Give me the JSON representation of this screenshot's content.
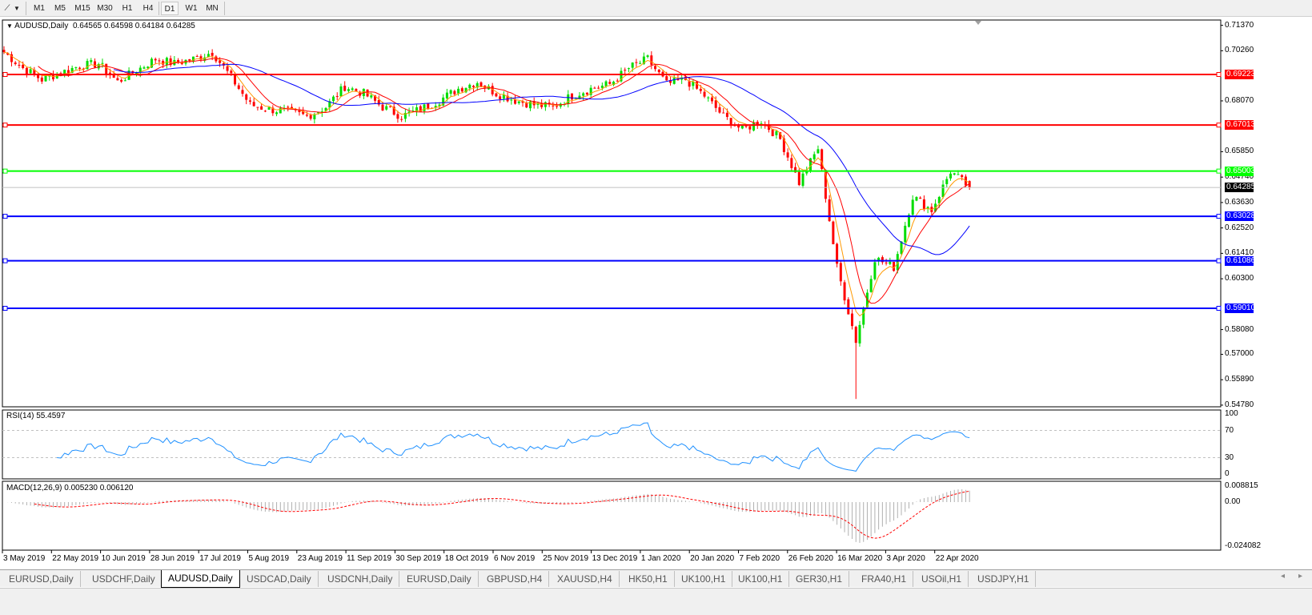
{
  "toolbar": {
    "tool_icon": "line-tool-icon",
    "timeframes": [
      "M1",
      "M5",
      "M15",
      "M30",
      "H1",
      "H4",
      "D1",
      "W1",
      "MN"
    ],
    "active_timeframe": "D1"
  },
  "chart": {
    "header": "AUDUSD,Daily",
    "ohlc": "0.64565 0.64598 0.64184 0.64285",
    "last_bar": {
      "open": 0.64565,
      "high": 0.64598,
      "low": 0.64184,
      "close": 0.64285
    },
    "current_price": "0.64285",
    "price_ticks": [
      "0.71370",
      "0.70260",
      "0.68070",
      "0.65850",
      "0.64740",
      "0.63630",
      "0.62520",
      "0.61410",
      "0.60300",
      "0.58080",
      "0.57000",
      "0.55890",
      "0.54780"
    ],
    "horizontal_lines": [
      {
        "price": "0.69223",
        "color": "#ff0000"
      },
      {
        "price": "0.67013",
        "color": "#ff0000"
      },
      {
        "price": "0.65003",
        "color": "#00ff00"
      },
      {
        "price": "0.63028",
        "color": "#0000ff"
      },
      {
        "price": "0.61086",
        "color": "#0000ff"
      },
      {
        "price": "0.59010",
        "color": "#0000ff"
      }
    ],
    "colors": {
      "bull": "#00dd00",
      "bear": "#ff0000",
      "ma_fast": "#ff9900",
      "ma_mid": "#ff0000",
      "ma_slow": "#0000ff",
      "rsi": "#1e90ff",
      "macd_hist": "#b0b0b0",
      "macd_signal": "#ff0000"
    },
    "weekly_closes": [
      0.702,
      0.695,
      0.69,
      0.693,
      0.696,
      0.697,
      0.689,
      0.694,
      0.699,
      0.697,
      0.699,
      0.702,
      0.691,
      0.679,
      0.677,
      0.676,
      0.674,
      0.678,
      0.687,
      0.684,
      0.678,
      0.674,
      0.677,
      0.681,
      0.686,
      0.689,
      0.684,
      0.681,
      0.679,
      0.678,
      0.683,
      0.686,
      0.688,
      0.695,
      0.699,
      0.688,
      0.69,
      0.683,
      0.674,
      0.668,
      0.672,
      0.664,
      0.645,
      0.66,
      0.608,
      0.576,
      0.612,
      0.608,
      0.639,
      0.633,
      0.65,
      0.6428
    ]
  },
  "rsi": {
    "label": "RSI(14) 55.4597",
    "levels": [
      "100",
      "70",
      "30",
      "0"
    ]
  },
  "macd": {
    "label": "MACD(12,26,9) 0.005230 0.006120",
    "ticks": [
      "0.008815",
      "0.00",
      "-0.024082"
    ]
  },
  "dates": [
    "3 May 2019",
    "22 May 2019",
    "10 Jun 2019",
    "28 Jun 2019",
    "17 Jul 2019",
    "5 Aug 2019",
    "23 Aug 2019",
    "11 Sep 2019",
    "30 Sep 2019",
    "18 Oct 2019",
    "6 Nov 2019",
    "25 Nov 2019",
    "13 Dec 2019",
    "1 Jan 2020",
    "20 Jan 2020",
    "7 Feb 2020",
    "26 Feb 2020",
    "16 Mar 2020",
    "3 Apr 2020",
    "22 Apr 2020"
  ],
  "tabs": [
    "EURUSD,Daily",
    "USDCHF,Daily",
    "AUDUSD,Daily",
    "USDCAD,Daily",
    "USDCNH,Daily",
    "EURUSD,Daily",
    "GBPUSD,H4",
    "XAUUSD,H4",
    "HK50,H1",
    "UK100,H1",
    "UK100,H1",
    "GER30,H1",
    "FRA40,H1",
    "USOil,H1",
    "USDJPY,H1"
  ],
  "active_tab": "AUDUSD,Daily"
}
